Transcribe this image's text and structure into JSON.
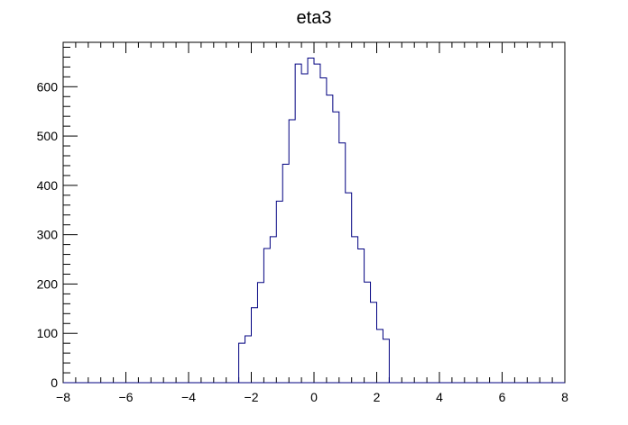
{
  "chart_data": {
    "type": "histogram",
    "title": "eta3",
    "xlabel": "",
    "ylabel": "",
    "xlim": [
      -8,
      8
    ],
    "ylim": [
      0,
      690
    ],
    "x_ticks": [
      "−8",
      "−6",
      "−4",
      "−2",
      "0",
      "2",
      "4",
      "6",
      "8"
    ],
    "y_ticks": [
      "0",
      "100",
      "200",
      "300",
      "400",
      "500",
      "600"
    ],
    "bin_width": 0.2,
    "bins": [
      {
        "x0": -2.4,
        "value": 80
      },
      {
        "x0": -2.2,
        "value": 95
      },
      {
        "x0": -2.0,
        "value": 152
      },
      {
        "x0": -1.8,
        "value": 203
      },
      {
        "x0": -1.6,
        "value": 272
      },
      {
        "x0": -1.4,
        "value": 296
      },
      {
        "x0": -1.2,
        "value": 368
      },
      {
        "x0": -1.0,
        "value": 443
      },
      {
        "x0": -0.8,
        "value": 533
      },
      {
        "x0": -0.6,
        "value": 646
      },
      {
        "x0": -0.4,
        "value": 626
      },
      {
        "x0": -0.2,
        "value": 658
      },
      {
        "x0": 0.0,
        "value": 646
      },
      {
        "x0": 0.2,
        "value": 618
      },
      {
        "x0": 0.4,
        "value": 583
      },
      {
        "x0": 0.6,
        "value": 549
      },
      {
        "x0": 0.8,
        "value": 486
      },
      {
        "x0": 1.0,
        "value": 385
      },
      {
        "x0": 1.2,
        "value": 296
      },
      {
        "x0": 1.4,
        "value": 271
      },
      {
        "x0": 1.6,
        "value": 204
      },
      {
        "x0": 1.8,
        "value": 163
      },
      {
        "x0": 2.0,
        "value": 108
      },
      {
        "x0": 2.2,
        "value": 88
      }
    ],
    "line_color": "#000080",
    "grid": false
  }
}
